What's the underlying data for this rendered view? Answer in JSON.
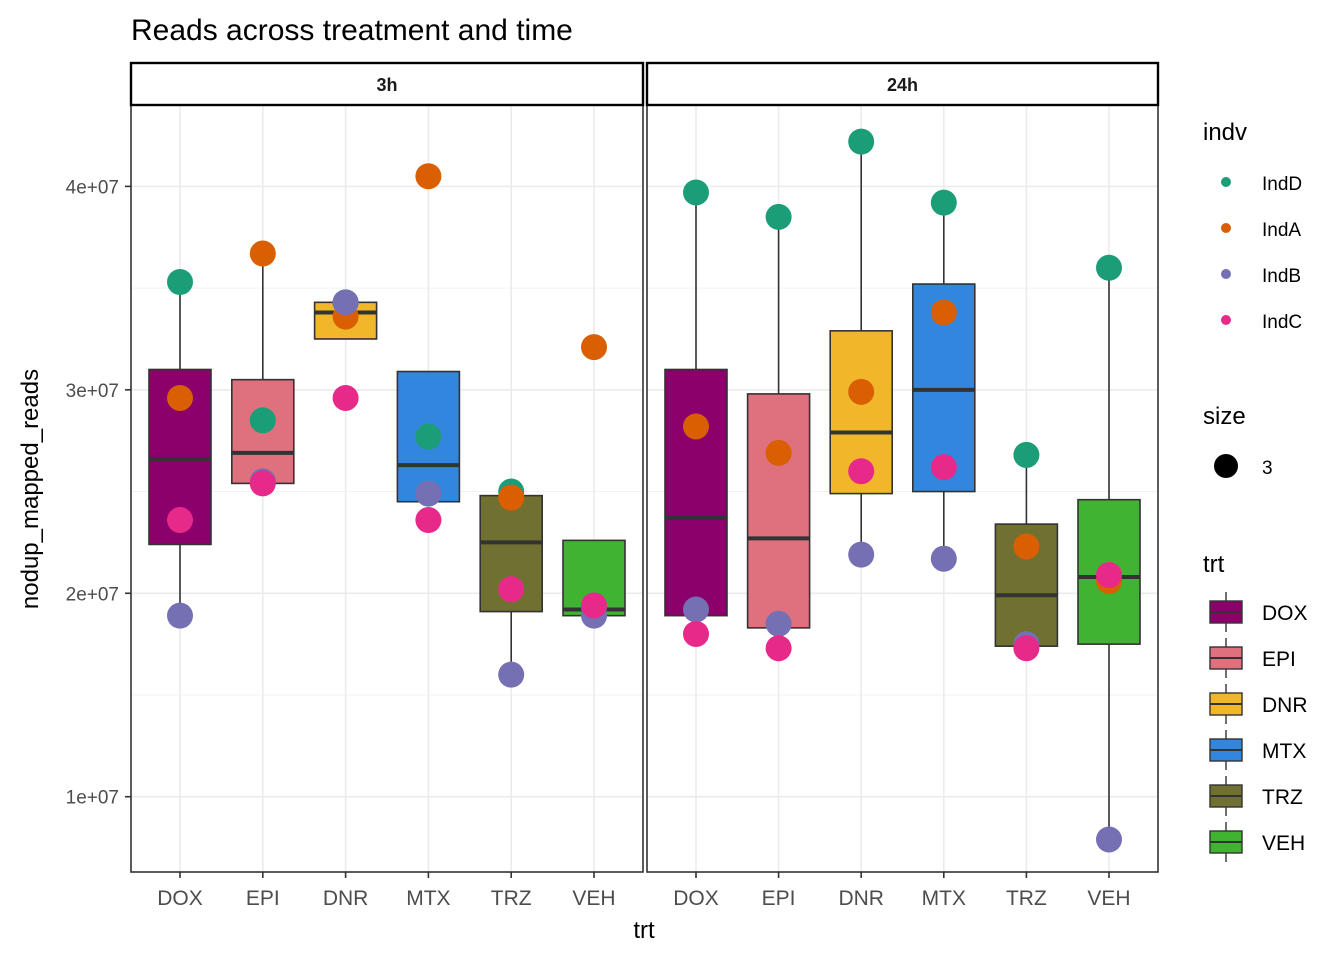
{
  "chart_data": {
    "type": "boxplot",
    "title": "Reads across treatment and time",
    "xlabel": "trt",
    "ylabel": "nodup_mapped_reads",
    "facets": [
      "3h",
      "24h"
    ],
    "categories": [
      "DOX",
      "EPI",
      "DNR",
      "MTX",
      "TRZ",
      "VEH"
    ],
    "ylim": [
      6300000,
      44000000
    ],
    "yticks": [
      10000000,
      20000000,
      30000000,
      40000000
    ],
    "ytick_labels": [
      "1e+07",
      "2e+07",
      "3e+07",
      "4e+07"
    ],
    "grid": true,
    "trt_colors": {
      "DOX": "#8B006B",
      "EPI": "#DF707E",
      "DNR": "#F1B72B",
      "MTX": "#3386DD",
      "TRZ": "#707031",
      "VEH": "#41B333"
    },
    "indv_colors": {
      "IndD": "#1B9E77",
      "IndA": "#D95F02",
      "IndB": "#7570B3",
      "IndC": "#E7298A"
    },
    "panels": [
      {
        "facet": "3h",
        "boxes": [
          {
            "trt": "DOX",
            "lower": 22400000,
            "q1": 22400000,
            "median": 26600000,
            "q3": 31000000,
            "upper": 35300000,
            "whisker_low": 18900000
          },
          {
            "trt": "EPI",
            "q1": 25400000,
            "median": 26900000,
            "q3": 30500000,
            "whisker_low": 25400000,
            "whisker_high": 36700000
          },
          {
            "trt": "DNR",
            "q1": 32500000,
            "median": 33800000,
            "q3": 34300000,
            "whisker_low": 32500000,
            "whisker_high": 34300000
          },
          {
            "trt": "MTX",
            "q1": 24500000,
            "median": 26300000,
            "q3": 30900000,
            "whisker_low": 24500000,
            "whisker_high": 30900000
          },
          {
            "trt": "TRZ",
            "q1": 19100000,
            "median": 22500000,
            "q3": 24800000,
            "whisker_low": 16000000,
            "whisker_high": 24800000
          },
          {
            "trt": "VEH",
            "q1": 18900000,
            "median": 19200000,
            "q3": 22600000,
            "whisker_low": 18900000,
            "whisker_high": 22600000
          }
        ],
        "points": [
          {
            "trt": "DOX",
            "indv": "IndD",
            "y": 35300000
          },
          {
            "trt": "DOX",
            "indv": "IndA",
            "y": 29600000
          },
          {
            "trt": "DOX",
            "indv": "IndC",
            "y": 23600000
          },
          {
            "trt": "DOX",
            "indv": "IndB",
            "y": 18900000
          },
          {
            "trt": "EPI",
            "indv": "IndA",
            "y": 36700000
          },
          {
            "trt": "EPI",
            "indv": "IndD",
            "y": 28500000
          },
          {
            "trt": "EPI",
            "indv": "IndB",
            "y": 25500000
          },
          {
            "trt": "EPI",
            "indv": "IndC",
            "y": 25400000
          },
          {
            "trt": "DNR",
            "indv": "IndD",
            "y": 34300000
          },
          {
            "trt": "DNR",
            "indv": "IndA",
            "y": 33600000
          },
          {
            "trt": "DNR",
            "indv": "IndB",
            "y": 34300000
          },
          {
            "trt": "DNR",
            "indv": "IndC",
            "y": 29600000
          },
          {
            "trt": "MTX",
            "indv": "IndA",
            "y": 40500000
          },
          {
            "trt": "MTX",
            "indv": "IndD",
            "y": 27700000
          },
          {
            "trt": "MTX",
            "indv": "IndB",
            "y": 24900000
          },
          {
            "trt": "MTX",
            "indv": "IndC",
            "y": 23600000
          },
          {
            "trt": "TRZ",
            "indv": "IndD",
            "y": 25000000
          },
          {
            "trt": "TRZ",
            "indv": "IndA",
            "y": 24700000
          },
          {
            "trt": "TRZ",
            "indv": "IndC",
            "y": 20200000
          },
          {
            "trt": "TRZ",
            "indv": "IndB",
            "y": 16000000
          },
          {
            "trt": "VEH",
            "indv": "IndA",
            "y": 32100000
          },
          {
            "trt": "VEH",
            "indv": "IndD",
            "y": 19300000
          },
          {
            "trt": "VEH",
            "indv": "IndB",
            "y": 18900000
          },
          {
            "trt": "VEH",
            "indv": "IndC",
            "y": 19400000
          }
        ]
      },
      {
        "facet": "24h",
        "boxes": [
          {
            "trt": "DOX",
            "q1": 18900000,
            "median": 23700000,
            "q3": 31000000,
            "whisker_low": 18900000,
            "whisker_high": 39700000
          },
          {
            "trt": "EPI",
            "q1": 18300000,
            "median": 22700000,
            "q3": 29800000,
            "whisker_low": 18300000,
            "whisker_high": 38500000
          },
          {
            "trt": "DNR",
            "q1": 24900000,
            "median": 27900000,
            "q3": 32900000,
            "whisker_low": 21900000,
            "whisker_high": 42200000
          },
          {
            "trt": "MTX",
            "q1": 25000000,
            "median": 30000000,
            "q3": 35200000,
            "whisker_low": 21700000,
            "whisker_high": 39200000
          },
          {
            "trt": "TRZ",
            "q1": 17400000,
            "median": 19900000,
            "q3": 23400000,
            "whisker_low": 17400000,
            "whisker_high": 26800000
          },
          {
            "trt": "VEH",
            "q1": 17500000,
            "median": 20800000,
            "q3": 24600000,
            "whisker_low": 7900000,
            "whisker_high": 36000000
          }
        ],
        "points": [
          {
            "trt": "DOX",
            "indv": "IndD",
            "y": 39700000
          },
          {
            "trt": "DOX",
            "indv": "IndA",
            "y": 28200000
          },
          {
            "trt": "DOX",
            "indv": "IndB",
            "y": 19200000
          },
          {
            "trt": "DOX",
            "indv": "IndC",
            "y": 18000000
          },
          {
            "trt": "EPI",
            "indv": "IndD",
            "y": 38500000
          },
          {
            "trt": "EPI",
            "indv": "IndA",
            "y": 26900000
          },
          {
            "trt": "EPI",
            "indv": "IndB",
            "y": 18500000
          },
          {
            "trt": "EPI",
            "indv": "IndC",
            "y": 17300000
          },
          {
            "trt": "DNR",
            "indv": "IndD",
            "y": 42200000
          },
          {
            "trt": "DNR",
            "indv": "IndA",
            "y": 29900000
          },
          {
            "trt": "DNR",
            "indv": "IndC",
            "y": 26000000
          },
          {
            "trt": "DNR",
            "indv": "IndB",
            "y": 21900000
          },
          {
            "trt": "MTX",
            "indv": "IndD",
            "y": 39200000
          },
          {
            "trt": "MTX",
            "indv": "IndA",
            "y": 33800000
          },
          {
            "trt": "MTX",
            "indv": "IndC",
            "y": 26200000
          },
          {
            "trt": "MTX",
            "indv": "IndB",
            "y": 21700000
          },
          {
            "trt": "TRZ",
            "indv": "IndD",
            "y": 26800000
          },
          {
            "trt": "TRZ",
            "indv": "IndA",
            "y": 22300000
          },
          {
            "trt": "TRZ",
            "indv": "IndB",
            "y": 17500000
          },
          {
            "trt": "TRZ",
            "indv": "IndC",
            "y": 17300000
          },
          {
            "trt": "VEH",
            "indv": "IndD",
            "y": 36000000
          },
          {
            "trt": "VEH",
            "indv": "IndA",
            "y": 20600000
          },
          {
            "trt": "VEH",
            "indv": "IndC",
            "y": 20900000
          },
          {
            "trt": "VEH",
            "indv": "IndB",
            "y": 7900000
          }
        ]
      }
    ],
    "legends": [
      {
        "title": "indv",
        "type": "point",
        "entries": [
          "IndD",
          "IndA",
          "IndB",
          "IndC"
        ]
      },
      {
        "title": "size",
        "type": "size",
        "entries": [
          "3"
        ]
      },
      {
        "title": "trt",
        "type": "box",
        "entries": [
          "DOX",
          "EPI",
          "DNR",
          "MTX",
          "TRZ",
          "VEH"
        ]
      }
    ],
    "legend_position": "right"
  }
}
